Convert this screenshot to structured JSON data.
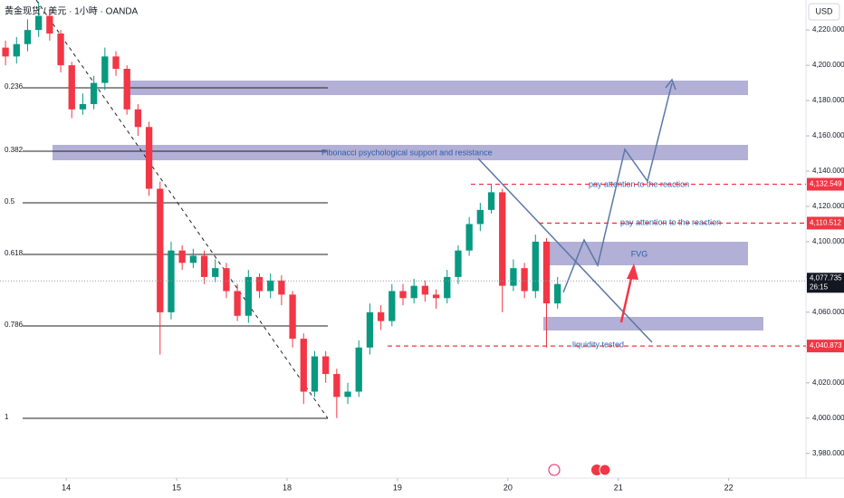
{
  "chart_data": {
    "type": "candlestick",
    "header": "黄金现货 / 美元 · 1小時 · OANDA",
    "currency": "USD",
    "x": [
      -0.55,
      -0.45,
      -0.35,
      -0.25,
      -0.15,
      -0.05,
      0.05,
      0.15,
      0.25,
      0.35,
      0.45,
      0.55,
      0.65,
      0.75,
      0.85,
      0.95,
      1.05,
      1.15,
      1.25,
      1.35,
      1.45,
      1.55,
      1.65,
      1.75,
      1.85,
      1.95,
      2.05,
      2.15,
      2.25,
      2.35,
      2.45,
      2.55,
      2.65,
      2.75,
      2.85,
      2.95,
      3.05,
      3.15,
      3.25,
      3.35,
      3.45,
      3.55,
      3.65,
      3.75,
      3.85,
      3.95,
      4.05,
      4.15,
      4.25,
      4.35,
      4.45
    ],
    "open": [
      4210,
      4205,
      4212,
      4220,
      4228,
      4218,
      4200,
      4175,
      4178,
      4190,
      4205,
      4198,
      4175,
      4165,
      4130,
      4060,
      4095,
      4088,
      4092,
      4080,
      4085,
      4072,
      4058,
      4080,
      4072,
      4078,
      4070,
      4045,
      4015,
      4035,
      4025,
      4012,
      4015,
      4040,
      4060,
      4055,
      4072,
      4068,
      4075,
      4070,
      4068,
      4080,
      4095,
      4110,
      4118,
      4128,
      4075,
      4085,
      4072,
      4100,
      4065
    ],
    "high": [
      4214,
      4216,
      4226,
      4236,
      4232,
      4220,
      4202,
      4184,
      4194,
      4210,
      4208,
      4200,
      4178,
      4168,
      4134,
      4100,
      4098,
      4096,
      4095,
      4090,
      4088,
      4076,
      4084,
      4082,
      4082,
      4081,
      4072,
      4048,
      4038,
      4038,
      4028,
      4020,
      4044,
      4065,
      4064,
      4076,
      4076,
      4079,
      4078,
      4073,
      4084,
      4098,
      4114,
      4122,
      4132.5,
      4130,
      4090,
      4088,
      4104,
      4102,
      4080
    ],
    "low": [
      4200,
      4201,
      4208,
      4216,
      4214,
      4196,
      4170,
      4172,
      4175,
      4186,
      4194,
      4172,
      4160,
      4126,
      4036,
      4056,
      4084,
      4085,
      4076,
      4077,
      4068,
      4055,
      4054,
      4068,
      4068,
      4064,
      4040,
      4008,
      4012,
      4020,
      4000,
      4008,
      4012,
      4036,
      4050,
      4052,
      4064,
      4065,
      4066,
      4062,
      4065,
      4076,
      4092,
      4106,
      4116,
      4060,
      4072,
      4068,
      4068,
      4040,
      4062
    ],
    "close": [
      4205,
      4212,
      4220,
      4228,
      4218,
      4200,
      4175,
      4178,
      4190,
      4205,
      4198,
      4175,
      4165,
      4130,
      4060,
      4095,
      4088,
      4092,
      4080,
      4085,
      4072,
      4058,
      4080,
      4072,
      4078,
      4070,
      4045,
      4015,
      4035,
      4025,
      4012,
      4015,
      4040,
      4060,
      4055,
      4072,
      4068,
      4075,
      4070,
      4068,
      4080,
      4095,
      4110,
      4118,
      4128,
      4075,
      4085,
      4072,
      4100,
      4065,
      4076
    ],
    "up_color": "#089981",
    "down_color": "#f23645",
    "xlim": [
      -0.6,
      6.7
    ],
    "xticks": [
      {
        "value": 0,
        "label": "14"
      },
      {
        "value": 1,
        "label": "15"
      },
      {
        "value": 2,
        "label": "18"
      },
      {
        "value": 3,
        "label": "19"
      },
      {
        "value": 4,
        "label": "20"
      },
      {
        "value": 5,
        "label": "21"
      },
      {
        "value": 6,
        "label": "22"
      }
    ],
    "ylim": [
      3966,
      4237
    ],
    "yticks": [
      {
        "value": 3980,
        "label": "3,980.000"
      },
      {
        "value": 4000,
        "label": "4,000.000"
      },
      {
        "value": 4020,
        "label": "4,020.000"
      },
      {
        "value": 4040,
        "label": "4,040.000"
      },
      {
        "value": 4060,
        "label": "4,060.000"
      },
      {
        "value": 4080,
        "label": "4,080.000"
      },
      {
        "value": 4100,
        "label": "4,100.000"
      },
      {
        "value": 4120,
        "label": "4,120.000"
      },
      {
        "value": 4140,
        "label": "4,140.000"
      },
      {
        "value": 4160,
        "label": "4,160.000"
      },
      {
        "value": 4180,
        "label": "4,180.000"
      },
      {
        "value": 4200,
        "label": "4,200.000"
      },
      {
        "value": 4220,
        "label": "4,220.000"
      }
    ],
    "levels": [
      {
        "value": 4132.549,
        "label": "4,132.549"
      },
      {
        "value": 4110.512,
        "label": "4,110.512"
      },
      {
        "value": 4040.873,
        "label": "4,040.873"
      }
    ],
    "level_color": "#f23645",
    "last_price": {
      "value": 4077.735,
      "label": "4,077.735"
    },
    "countdown": "26:15",
    "fib_labels": [
      "0.236",
      "0.382",
      "0.5",
      "0.618",
      "0.786",
      "1"
    ],
    "annotations": {
      "fib_text": "Fibonacci psychological support and resistance",
      "reaction_1": "pay attention to the reaction",
      "reaction_2": "pay attention to the reaction",
      "fvg": "FVG",
      "liquidity": "liquidity tested"
    }
  }
}
